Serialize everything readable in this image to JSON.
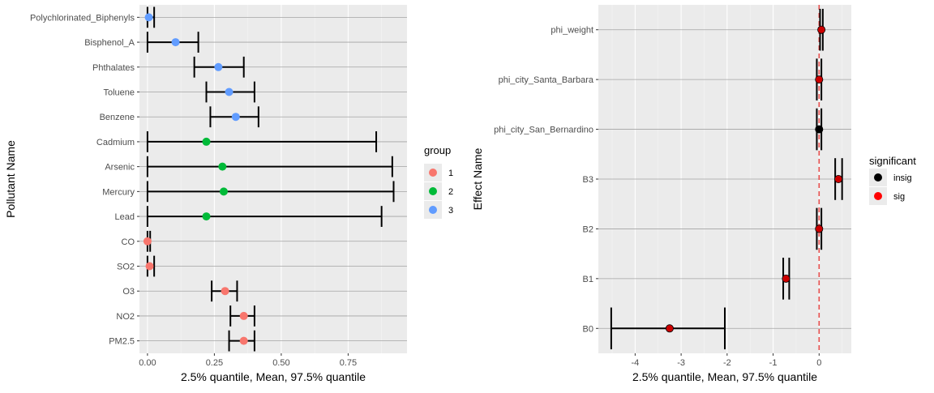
{
  "chart_data": [
    {
      "type": "errorbar",
      "xlabel": "2.5% quantile, Mean, 97.5% quantile",
      "ylabel": "Pollutant Name",
      "xlim": [
        -0.03,
        0.97
      ],
      "xticks": [
        0.0,
        0.25,
        0.5,
        0.75
      ],
      "xtick_labels": [
        "0.00",
        "0.25",
        "0.50",
        "0.75"
      ],
      "grid": true,
      "legend": {
        "title": "group",
        "placement": "right",
        "entries": [
          {
            "label": "1",
            "color": "#F8766D"
          },
          {
            "label": "2",
            "color": "#00BA38"
          },
          {
            "label": "3",
            "color": "#619CFF"
          }
        ]
      },
      "categories": [
        "Polychlorinated_Biphenyls",
        "Bisphenol_A",
        "Phthalates",
        "Toluene",
        "Benzene",
        "Cadmium",
        "Arsenic",
        "Mercury",
        "Lead",
        "CO",
        "SO2",
        "O3",
        "NO2",
        "PM2.5"
      ],
      "points": [
        {
          "name": "Polychlorinated_Biphenyls",
          "low": 0.0,
          "mean": 0.005,
          "high": 0.025,
          "group": "3"
        },
        {
          "name": "Bisphenol_A",
          "low": 0.0,
          "mean": 0.105,
          "high": 0.19,
          "group": "3"
        },
        {
          "name": "Phthalates",
          "low": 0.175,
          "mean": 0.265,
          "high": 0.36,
          "group": "3"
        },
        {
          "name": "Toluene",
          "low": 0.22,
          "mean": 0.305,
          "high": 0.4,
          "group": "3"
        },
        {
          "name": "Benzene",
          "low": 0.235,
          "mean": 0.33,
          "high": 0.415,
          "group": "3"
        },
        {
          "name": "Cadmium",
          "low": 0.0,
          "mean": 0.22,
          "high": 0.855,
          "group": "2"
        },
        {
          "name": "Arsenic",
          "low": 0.0,
          "mean": 0.28,
          "high": 0.915,
          "group": "2"
        },
        {
          "name": "Mercury",
          "low": 0.0,
          "mean": 0.285,
          "high": 0.92,
          "group": "2"
        },
        {
          "name": "Lead",
          "low": 0.0,
          "mean": 0.22,
          "high": 0.875,
          "group": "2"
        },
        {
          "name": "CO",
          "low": 0.0,
          "mean": 0.0,
          "high": 0.01,
          "group": "1"
        },
        {
          "name": "SO2",
          "low": 0.0,
          "mean": 0.008,
          "high": 0.025,
          "group": "1"
        },
        {
          "name": "O3",
          "low": 0.24,
          "mean": 0.29,
          "high": 0.335,
          "group": "1"
        },
        {
          "name": "NO2",
          "low": 0.31,
          "mean": 0.36,
          "high": 0.4,
          "group": "1"
        },
        {
          "name": "PM2.5",
          "low": 0.305,
          "mean": 0.36,
          "high": 0.4,
          "group": "1"
        }
      ]
    },
    {
      "type": "errorbar",
      "xlabel": "2.5% quantile, Mean, 97.5% quantile",
      "ylabel": "Effect Name",
      "xlim": [
        -4.8,
        0.7
      ],
      "xticks": [
        -4,
        -3,
        -2,
        -1,
        0
      ],
      "xtick_labels": [
        "-4",
        "-3",
        "-2",
        "-1",
        "0"
      ],
      "reference_line": {
        "x": 0,
        "color": "#E8504F",
        "style": "dashed"
      },
      "grid": true,
      "legend": {
        "title": "significant",
        "placement": "right",
        "entries": [
          {
            "label": "insig",
            "color": "#000000"
          },
          {
            "label": "sig",
            "color": "#FF0000"
          }
        ]
      },
      "categories": [
        "phi_weight",
        "phi_city_Santa_Barbara",
        "phi_city_San_Bernardino",
        "B3",
        "B2",
        "B1",
        "B0"
      ],
      "points": [
        {
          "name": "phi_weight",
          "low": 0.02,
          "mean": 0.05,
          "high": 0.08,
          "significant": "sig"
        },
        {
          "name": "phi_city_Santa_Barbara",
          "low": -0.05,
          "mean": 0.0,
          "high": 0.05,
          "significant": "sig"
        },
        {
          "name": "phi_city_San_Bernardino",
          "low": -0.05,
          "mean": 0.0,
          "high": 0.05,
          "significant": "insig"
        },
        {
          "name": "B3",
          "low": 0.35,
          "mean": 0.42,
          "high": 0.5,
          "significant": "sig"
        },
        {
          "name": "B2",
          "low": -0.05,
          "mean": 0.0,
          "high": 0.05,
          "significant": "sig"
        },
        {
          "name": "B1",
          "low": -0.78,
          "mean": -0.72,
          "high": -0.65,
          "significant": "sig"
        },
        {
          "name": "B0",
          "low": -4.52,
          "mean": -3.25,
          "high": -2.05,
          "significant": "sig"
        }
      ]
    }
  ]
}
